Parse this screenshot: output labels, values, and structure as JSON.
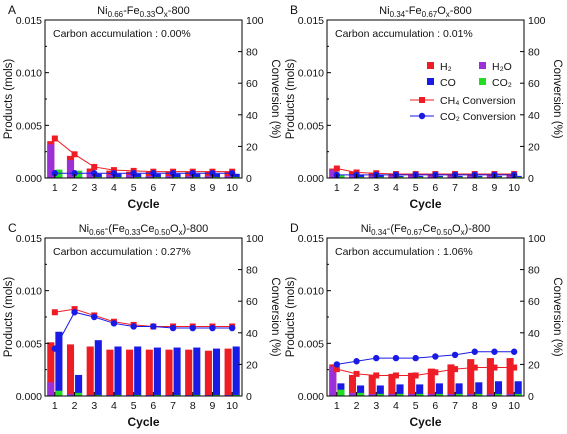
{
  "figure": {
    "y_left_label": "Products (mols)",
    "y_right_label": "Conversion (%)",
    "x_label": "Cycle"
  },
  "legend": {
    "h2": "H₂",
    "h2o": "H₂O",
    "co": "CO",
    "co2": "CO₂",
    "ch4_conversion": "CH₄ Conversion",
    "co2_conversion": "CO₂ Conversion"
  },
  "colors": {
    "h2": "#ee1c25",
    "h2o": "#9b30d9",
    "co": "#1a1ae6",
    "co2": "#22dd22",
    "ch4_line": "#ee1c25",
    "co2_line": "#1a1ae6"
  },
  "chart_data": [
    {
      "panel_letter": "A",
      "title": {
        "base": "Ni",
        "sub1": "0.66",
        "mid": "-Fe",
        "sub2": "0.33",
        "tail": "O",
        "sub3": "x",
        "end": "-800"
      },
      "carbon_accumulation": "Carbon accumulation : 0.00%",
      "type": "bar",
      "x": [
        1,
        2,
        3,
        4,
        5,
        6,
        7,
        8,
        9,
        10
      ],
      "ylim": [
        0,
        0.015
      ],
      "y2lim": [
        0,
        100
      ],
      "series": [
        {
          "name": "H₂",
          "values": [
            0.0035,
            0.0021,
            0.0009,
            0.0007,
            0.0006,
            0.0006,
            0.0006,
            0.0006,
            0.0006,
            0.0006
          ]
        },
        {
          "name": "H₂O",
          "values": [
            0.0032,
            0.0017,
            0.0006,
            0.0003,
            0.0003,
            0.0002,
            0.0002,
            0.0002,
            0.0002,
            0.0002
          ]
        },
        {
          "name": "CO",
          "values": [
            0.0005,
            0.0005,
            0.0004,
            0.0004,
            0.0004,
            0.0004,
            0.0004,
            0.0004,
            0.0004,
            0.0004
          ]
        },
        {
          "name": "CO₂",
          "values": [
            0.0008,
            0.0007,
            0.0001,
            0.0001,
            0.0001,
            0.0001,
            0.0001,
            0.0001,
            0.0001,
            0.0001
          ]
        },
        {
          "name": "CH₄ Conversion",
          "values": [
            25,
            15,
            7,
            5,
            4.5,
            4,
            4,
            4,
            4,
            4
          ]
        },
        {
          "name": "CO₂ Conversion",
          "values": [
            3,
            3,
            3,
            3,
            3,
            3,
            3,
            3,
            3,
            3
          ]
        }
      ]
    },
    {
      "panel_letter": "B",
      "title": {
        "base": "Ni",
        "sub1": "0.34",
        "mid": "-Fe",
        "sub2": "0.67",
        "tail": "O",
        "sub3": "x",
        "end": "-800"
      },
      "carbon_accumulation": "Carbon accumulation : 0.01%",
      "type": "bar",
      "x": [
        1,
        2,
        3,
        4,
        5,
        6,
        7,
        8,
        9,
        10
      ],
      "ylim": [
        0,
        0.015
      ],
      "y2lim": [
        0,
        100
      ],
      "series": [
        {
          "name": "H₂",
          "values": [
            0.0009,
            0.0006,
            0.0005,
            0.0004,
            0.0004,
            0.0004,
            0.0004,
            0.0004,
            0.0004,
            0.0003
          ]
        },
        {
          "name": "H₂O",
          "values": [
            0.0008,
            0.0003,
            0.0002,
            0.0002,
            0.0002,
            0.0002,
            0.0002,
            0.0002,
            0.0002,
            0.0002
          ]
        },
        {
          "name": "CO",
          "values": [
            0.0003,
            0.0003,
            0.0003,
            0.0002,
            0.0002,
            0.0002,
            0.0002,
            0.0002,
            0.0002,
            0.0002
          ]
        },
        {
          "name": "CO₂",
          "values": [
            0.0003,
            0.0001,
            0.0001,
            0.0001,
            0.0001,
            0.0001,
            0.0001,
            0.0001,
            0.0001,
            0.0001
          ]
        },
        {
          "name": "CH₄ Conversion",
          "values": [
            6,
            3.5,
            3,
            2.5,
            2.5,
            2.5,
            2.5,
            2.5,
            2.5,
            2.5
          ]
        },
        {
          "name": "CO₂ Conversion",
          "values": [
            2,
            2,
            2,
            2,
            2,
            2,
            2,
            2,
            2,
            2
          ]
        }
      ]
    },
    {
      "panel_letter": "C",
      "title": {
        "base": "Ni",
        "sub1": "0.66",
        "mid": "-(Fe",
        "sub2": "0.33",
        "tail": "Ce",
        "sub3": "0.50",
        "end": "O",
        "sub4": "x",
        "end2": ")-800"
      },
      "carbon_accumulation": "Carbon accumulation : 0.27%",
      "type": "bar",
      "x": [
        1,
        2,
        3,
        4,
        5,
        6,
        7,
        8,
        9,
        10
      ],
      "ylim": [
        0,
        0.015
      ],
      "y2lim": [
        0,
        100
      ],
      "series": [
        {
          "name": "H₂",
          "values": [
            0.0051,
            0.0049,
            0.0047,
            0.0044,
            0.0044,
            0.0044,
            0.0044,
            0.0044,
            0.0043,
            0.0045
          ]
        },
        {
          "name": "H₂O",
          "values": [
            0.0013,
            0.0002,
            0.0001,
            0.0001,
            0.0001,
            0.0001,
            0.0001,
            0.0001,
            0.0001,
            0.0001
          ]
        },
        {
          "name": "CO",
          "values": [
            0.0061,
            0.002,
            0.0053,
            0.0047,
            0.0047,
            0.0046,
            0.0046,
            0.0046,
            0.0045,
            0.0047
          ]
        },
        {
          "name": "CO₂",
          "values": [
            0.0005,
            0.0003,
            0.0001,
            0.0001,
            0.0001,
            0.0001,
            0.0001,
            0.0001,
            0.0001,
            0.0001
          ]
        },
        {
          "name": "CH₄ Conversion",
          "values": [
            53,
            55,
            51,
            47,
            45,
            44,
            44,
            44,
            44,
            44
          ]
        },
        {
          "name": "CO₂ Conversion",
          "values": [
            30,
            53,
            50,
            46,
            44,
            44,
            43,
            43,
            43,
            43
          ]
        }
      ]
    },
    {
      "panel_letter": "D",
      "title": {
        "base": "Ni",
        "sub1": "0.34",
        "mid": "-(Fe",
        "sub2": "0.67",
        "tail": "Ce",
        "sub3": "0.50",
        "end": "O",
        "sub4": "x",
        "end2": ")-800"
      },
      "carbon_accumulation": "Carbon accumulation : 1.06%",
      "type": "bar",
      "x": [
        1,
        2,
        3,
        4,
        5,
        6,
        7,
        8,
        9,
        10
      ],
      "ylim": [
        0,
        0.015
      ],
      "y2lim": [
        0,
        100
      ],
      "series": [
        {
          "name": "H₂",
          "values": [
            0.003,
            0.002,
            0.002,
            0.0021,
            0.0022,
            0.0026,
            0.003,
            0.0035,
            0.0036,
            0.0036
          ]
        },
        {
          "name": "H₂O",
          "values": [
            0.0028,
            0.0003,
            0.0002,
            0.0002,
            0.0002,
            0.0002,
            0.0002,
            0.0002,
            0.0002,
            0.0002
          ]
        },
        {
          "name": "CO",
          "values": [
            0.0012,
            0.001,
            0.001,
            0.0011,
            0.0011,
            0.0012,
            0.0012,
            0.0013,
            0.0014,
            0.0014
          ]
        },
        {
          "name": "CO₂",
          "values": [
            0.0006,
            0.0003,
            0.0002,
            0.0002,
            0.0002,
            0.0002,
            0.0002,
            0.0002,
            0.0002,
            0.0002
          ]
        },
        {
          "name": "CH₄ Conversion",
          "values": [
            17,
            14,
            13,
            13,
            13,
            15,
            17,
            18,
            18,
            18
          ]
        },
        {
          "name": "CO₂ Conversion",
          "values": [
            20,
            22,
            24,
            24,
            24,
            25,
            26,
            28,
            28,
            28
          ]
        }
      ]
    }
  ]
}
